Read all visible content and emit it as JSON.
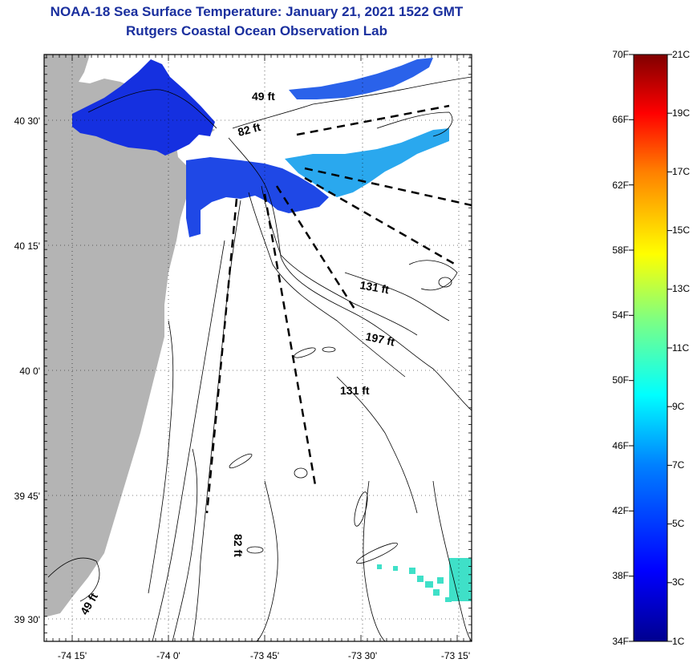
{
  "header": {
    "title": "NOAA-18 Sea Surface Temperature:  January 21, 2021 1522 GMT",
    "subtitle": "Rutgers Coastal Ocean Observation Lab"
  },
  "map": {
    "lat_ticks": [
      "40 30'",
      "40 15'",
      "40 0'",
      "39 45'",
      "39 30'"
    ],
    "lon_ticks": [
      "-74 15'",
      "-74 0'",
      "-73 45'",
      "-73 30'",
      "-73 15'"
    ],
    "depth_labels": [
      "49 ft",
      "82 ft",
      "131 ft",
      "197 ft",
      "131 ft",
      "82 ft",
      "49 ft"
    ]
  },
  "colorbar": {
    "f_labels": [
      "70F",
      "66F",
      "62F",
      "58F",
      "54F",
      "50F",
      "46F",
      "42F",
      "38F",
      "34F"
    ],
    "c_labels": [
      "21C",
      "19C",
      "17C",
      "15C",
      "13C",
      "11C",
      "9C",
      "7C",
      "5C",
      "3C",
      "1C"
    ]
  },
  "colors": {
    "title": "#1a2f9e",
    "land": "#b4b4b4",
    "sst_cold": "#1530e0",
    "sst_mid": "#1e78e8",
    "sst_cyan": "#3fe0c8"
  }
}
